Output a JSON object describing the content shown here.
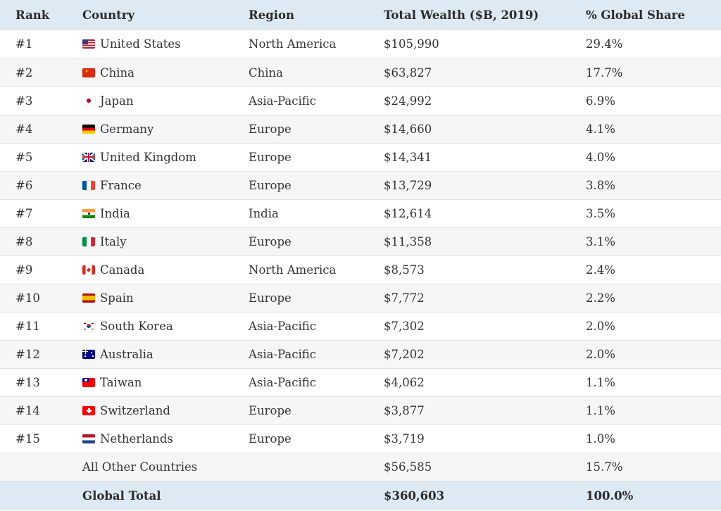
{
  "chart_data": {
    "type": "table",
    "columns": [
      "Rank",
      "Country",
      "Region",
      "Total Wealth ($B, 2019)",
      "% Global Share"
    ],
    "rows": [
      {
        "rank": "#1",
        "country": "United States",
        "flag": "us-flag-icon",
        "region": "North America",
        "wealth": "$105,990",
        "share": "29.4%"
      },
      {
        "rank": "#2",
        "country": "China",
        "flag": "china-flag-icon",
        "region": "China",
        "wealth": "$63,827",
        "share": "17.7%"
      },
      {
        "rank": "#3",
        "country": "Japan",
        "flag": "japan-flag-icon",
        "region": "Asia-Pacific",
        "wealth": "$24,992",
        "share": "6.9%"
      },
      {
        "rank": "#4",
        "country": "Germany",
        "flag": "germany-flag-icon",
        "region": "Europe",
        "wealth": "$14,660",
        "share": "4.1%"
      },
      {
        "rank": "#5",
        "country": "United Kingdom",
        "flag": "uk-flag-icon",
        "region": "Europe",
        "wealth": "$14,341",
        "share": "4.0%"
      },
      {
        "rank": "#6",
        "country": "France",
        "flag": "france-flag-icon",
        "region": "Europe",
        "wealth": "$13,729",
        "share": "3.8%"
      },
      {
        "rank": "#7",
        "country": "India",
        "flag": "india-flag-icon",
        "region": "India",
        "wealth": "$12,614",
        "share": "3.5%"
      },
      {
        "rank": "#8",
        "country": "Italy",
        "flag": "italy-flag-icon",
        "region": "Europe",
        "wealth": "$11,358",
        "share": "3.1%"
      },
      {
        "rank": "#9",
        "country": "Canada",
        "flag": "canada-flag-icon",
        "region": "North America",
        "wealth": "$8,573",
        "share": "2.4%"
      },
      {
        "rank": "#10",
        "country": "Spain",
        "flag": "spain-flag-icon",
        "region": "Europe",
        "wealth": "$7,772",
        "share": "2.2%"
      },
      {
        "rank": "#11",
        "country": "South Korea",
        "flag": "south-korea-flag-icon",
        "region": "Asia-Pacific",
        "wealth": "$7,302",
        "share": "2.0%"
      },
      {
        "rank": "#12",
        "country": "Australia",
        "flag": "australia-flag-icon",
        "region": "Asia-Pacific",
        "wealth": "$7,202",
        "share": "2.0%"
      },
      {
        "rank": "#13",
        "country": "Taiwan",
        "flag": "taiwan-flag-icon",
        "region": "Asia-Pacific",
        "wealth": "$4,062",
        "share": "1.1%"
      },
      {
        "rank": "#14",
        "country": "Switzerland",
        "flag": "switzerland-flag-icon",
        "region": "Europe",
        "wealth": "$3,877",
        "share": "1.1%"
      },
      {
        "rank": "#15",
        "country": "Netherlands",
        "flag": "netherlands-flag-icon",
        "region": "Europe",
        "wealth": "$3,719",
        "share": "1.0%"
      },
      {
        "rank": "",
        "country": "All Other Countries",
        "flag": "",
        "region": "",
        "wealth": "$56,585",
        "share": "15.7%"
      }
    ],
    "total": {
      "label": "Global Total",
      "wealth": "$360,603",
      "share": "100.0%"
    }
  },
  "colors": {
    "header_bg": "#dde9f3",
    "alt_row_bg": "#f6f6f6",
    "row_border": "#e3e3e3",
    "text": "#333333"
  }
}
